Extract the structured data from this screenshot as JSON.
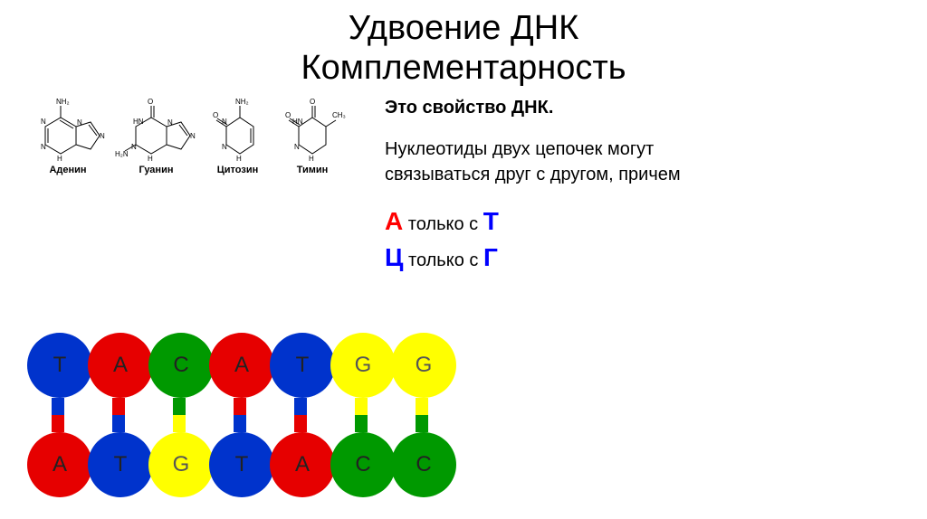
{
  "title": {
    "line1": "Удвоение ДНК",
    "line2": "Комплементарность"
  },
  "molecules": [
    {
      "name": "Аденин"
    },
    {
      "name": "Гуанин"
    },
    {
      "name": "Цитозин"
    },
    {
      "name": "Тимин"
    }
  ],
  "right": {
    "property": "Это свойство ДНК.",
    "desc1": "Нуклеотиды двух цепочек могут",
    "desc2": "связываться друг с другом, причем",
    "pair1_left": "А",
    "pair1_mid": " только с ",
    "pair1_right": "Т",
    "pair2_left": "Ц",
    "pair2_mid": " только с ",
    "pair2_right": "Г"
  },
  "colors": {
    "T": "#0033cc",
    "A": "#e60000",
    "C": "#009900",
    "G": "#ffff00"
  },
  "chain": {
    "top": [
      "T",
      "A",
      "C",
      "A",
      "T",
      "G",
      "G"
    ],
    "bottom": [
      "A",
      "T",
      "G",
      "T",
      "A",
      "C",
      "C"
    ]
  }
}
